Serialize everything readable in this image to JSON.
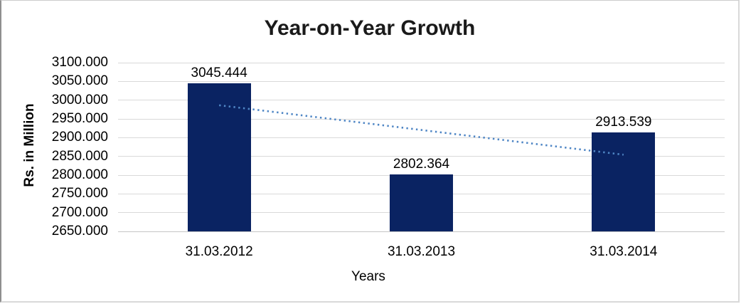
{
  "window": {
    "background": "#ffffff",
    "frame_border_color": "#c6c6c6"
  },
  "chart_data": {
    "type": "bar",
    "title": "Year-on-Year Growth",
    "xlabel": "Years",
    "ylabel": "Rs. in Million",
    "categories": [
      "31.03.2012",
      "31.03.2013",
      "31.03.2014"
    ],
    "values": [
      3045.444,
      2802.364,
      2913.539
    ],
    "value_labels": [
      "3045.444",
      "2802.364",
      "2913.539"
    ],
    "ylim": [
      2650,
      3100
    ],
    "ytick_step": 50,
    "ytick_labels_top_to_bottom": [
      "3100.000",
      "3050.000",
      "3000.000",
      "2950.000",
      "2900.000",
      "2850.000",
      "2800.000",
      "2750.000",
      "2700.000",
      "2650.000"
    ],
    "grid": true,
    "legend": "none",
    "bar_color": "#0a2362",
    "gridline_color": "#d9d9d9",
    "text_color": "#000000",
    "title_color": "#1a1a1a",
    "trendline": {
      "type": "linear",
      "style": "dotted",
      "color": "#4f86c5",
      "start_value": 2986.4,
      "end_value": 2854.5
    }
  }
}
